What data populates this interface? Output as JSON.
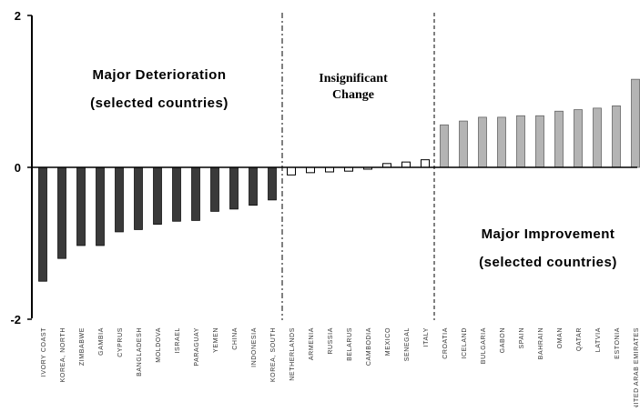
{
  "chart_data": {
    "type": "bar",
    "ylim": [
      -2,
      2
    ],
    "yticks": [
      "2",
      "0",
      "-2"
    ],
    "grid": false,
    "categories": [
      "IVORY COAST",
      "KOREA, NORTH",
      "ZIMBABWE",
      "GAMBIA",
      "CYPRUS",
      "BANGLADESH",
      "MOLDOVA",
      "ISRAEL",
      "PARAGUAY",
      "YEMEN",
      "CHINA",
      "INDONESIA",
      "KOREA, SOUTH",
      "NETHERLANDS",
      "ARMENIA",
      "RUSSIA",
      "BELARUS",
      "CAMBODIA",
      "MEXICO",
      "SENEGAL",
      "ITALY",
      "CROATIA",
      "ICELAND",
      "BULGARIA",
      "GABON",
      "SPAIN",
      "BAHRAIN",
      "OMAN",
      "QATAR",
      "LATVIA",
      "ESTONIA",
      "UNITED ARAB EMIRATES"
    ],
    "values": [
      -1.5,
      -1.2,
      -1.03,
      -1.03,
      -0.85,
      -0.82,
      -0.75,
      -0.71,
      -0.7,
      -0.58,
      -0.55,
      -0.5,
      -0.43,
      -0.1,
      -0.07,
      -0.06,
      -0.05,
      -0.02,
      0.05,
      0.07,
      0.1,
      0.56,
      0.61,
      0.66,
      0.66,
      0.68,
      0.68,
      0.74,
      0.76,
      0.78,
      0.81,
      1.16
    ],
    "groups": [
      {
        "start": 0,
        "end": 12,
        "color": "#3a3a3a",
        "fill": true
      },
      {
        "start": 13,
        "end": 20,
        "color": "#ffffff",
        "fill": false
      },
      {
        "start": 21,
        "end": 31,
        "color": "#b4b4b4",
        "fill": true
      }
    ],
    "annotations": {
      "deterioration_line1": "Major Deterioration",
      "deterioration_line2": "(selected countries)",
      "insignificant_line1": "Insignificant",
      "insignificant_line2": "Change",
      "improvement_line1": "Major Improvement",
      "improvement_line2": "(selected countries)"
    }
  }
}
